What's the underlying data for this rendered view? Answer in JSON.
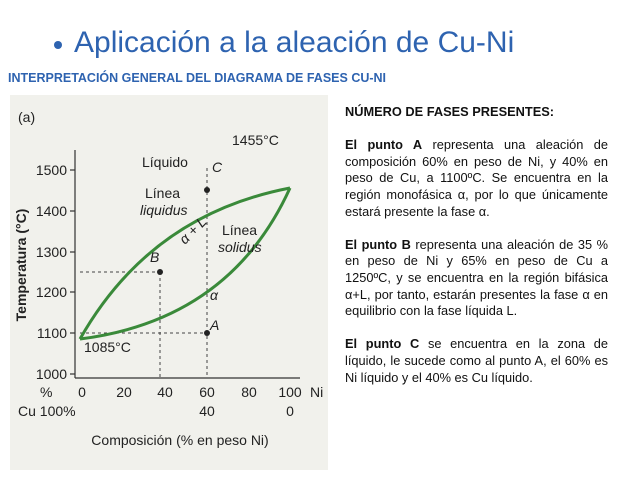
{
  "header": {
    "title": "Aplicación a la aleación de Cu-Ni",
    "subtitle": "INTERPRETACIÓN GENERAL DEL DIAGRAMA DE FASES CU-NI"
  },
  "diagram": {
    "panel": "(a)",
    "y_axis": "Temperatura (°C)",
    "top_temp": "1455°C",
    "liquid": "Líquido",
    "point_c": "C",
    "liquidus_1": "Línea",
    "liquidus_2": "liquidus",
    "two_phase": "α + L",
    "solidus_1": "Línea",
    "solidus_2": "solidus",
    "point_b": "B",
    "alpha": "α",
    "point_a": "A",
    "bottom_temp": "1085°C",
    "y_ticks": [
      "1500",
      "1400",
      "1300",
      "1200",
      "1100",
      "1000"
    ],
    "pct": "%",
    "ni_ticks": [
      "0",
      "20",
      "40",
      "60",
      "80",
      "100"
    ],
    "ni": "Ni",
    "cu": "Cu 100%",
    "cu_ticks": [
      "40",
      "0"
    ],
    "x_axis": "Composición (% en peso Ni)"
  },
  "text": {
    "heading": "NÚMERO DE FASES PRESENTES:",
    "paragraphs": [
      {
        "bold": "El punto A",
        "text": " representa una aleación de composición 60% en peso de Ni, y 40% en peso de Cu, a 1100ºC. Se encuentra en la región monofásica α, por lo que únicamente estará presente la fase α."
      },
      {
        "bold": "El punto B",
        "text": " representa una aleación de 35 %  en peso de Ni y 65% en peso de Cu a 1250ºC, y se encuentra en la región bifásica α+L, por tanto, estarán presentes la fase α en equilibrio con la fase líquida L."
      },
      {
        "bold": "El punto C",
        "text": " se encuentra en la zona de líquido, le sucede como al punto A, el 60% es Ni líquido y el 40% es Cu líquido."
      }
    ]
  }
}
